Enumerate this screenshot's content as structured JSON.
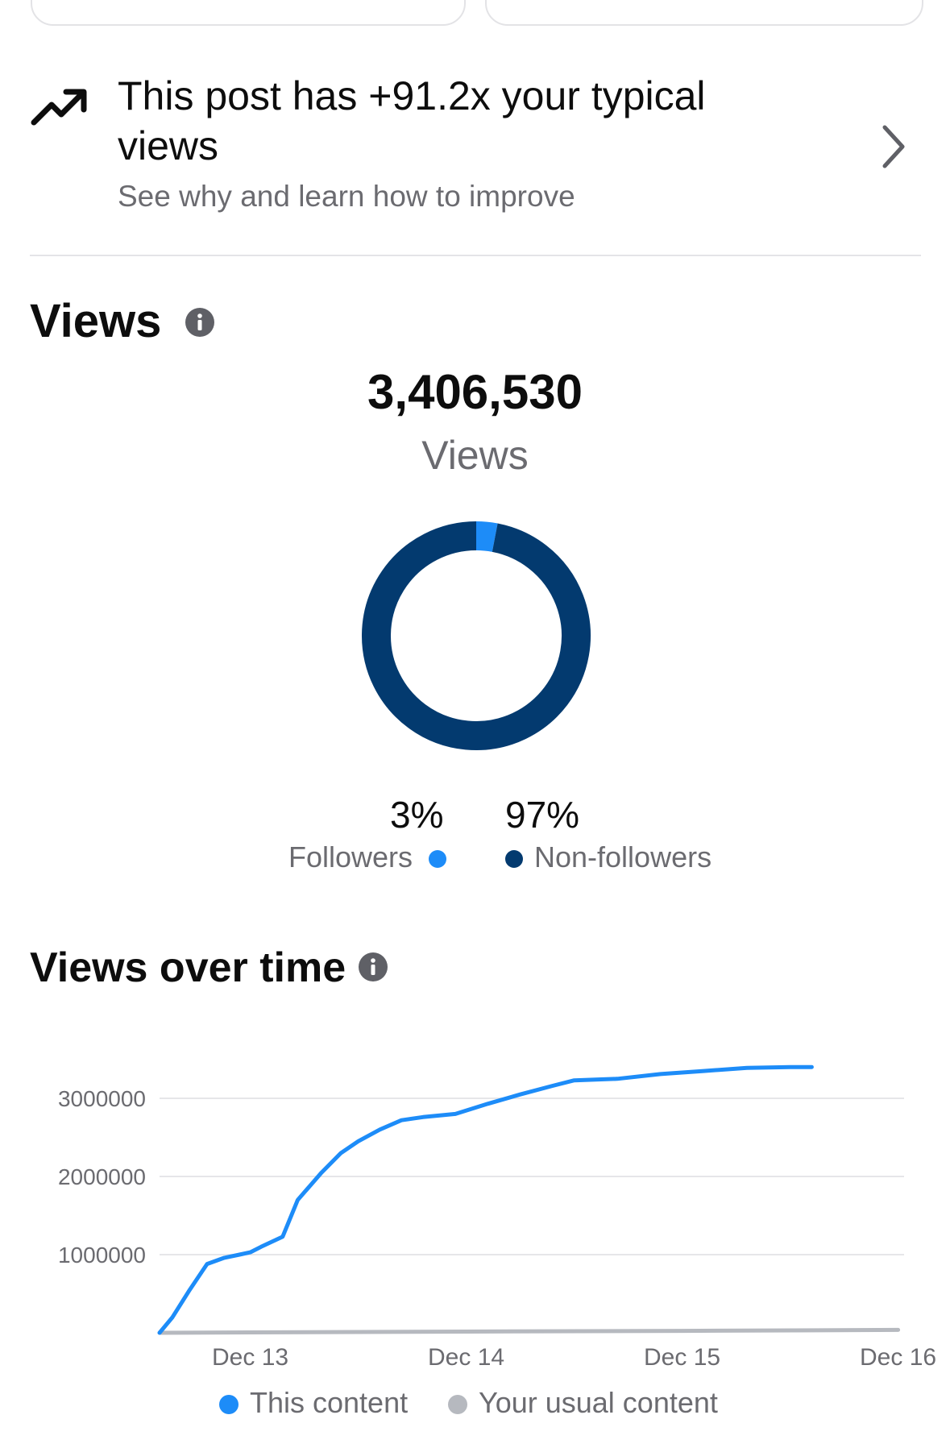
{
  "insight": {
    "title": "This post has +91.2x your typical views",
    "subtitle": "See why and learn how to improve",
    "icon": "trending-up-icon"
  },
  "views_section": {
    "title": "Views",
    "total": "3,406,530",
    "total_label": "Views",
    "followers_pct": "3%",
    "followers_label": "Followers",
    "nonfollowers_pct": "97%",
    "nonfollowers_label": "Non-followers"
  },
  "views_over_time": {
    "title": "Views over time",
    "legend_this": "This content",
    "legend_usual": "Your usual content"
  },
  "colors": {
    "followers": "#1d8cf8",
    "nonfollowers": "#033a6f",
    "this_content": "#1d8cf8",
    "usual_content": "#b6b9bf",
    "gridline": "#e6e6e9",
    "axis_text": "#6b6b70"
  },
  "chart_data": [
    {
      "type": "pie",
      "categories": [
        "Followers",
        "Non-followers"
      ],
      "values": [
        3,
        97
      ],
      "colors": [
        "#1d8cf8",
        "#033a6f"
      ],
      "donut": true
    },
    {
      "type": "line",
      "title": "Views over time",
      "x_tick_labels": [
        "Dec 13",
        "Dec 14",
        "Dec 15",
        "Dec 16"
      ],
      "y_tick_labels": [
        "1000000",
        "2000000",
        "3000000"
      ],
      "x_unit": "days (Dec 13 = 13)",
      "ylim": [
        0,
        3400000
      ],
      "xlim": [
        12.58,
        16.0
      ],
      "grid": true,
      "legend_placement": "bottom",
      "series": [
        {
          "name": "This content",
          "color": "#1d8cf8",
          "x": [
            12.58,
            12.64,
            12.72,
            12.8,
            12.88,
            12.95,
            13.0,
            13.05,
            13.15,
            13.22,
            13.33,
            13.42,
            13.5,
            13.6,
            13.7,
            13.8,
            13.95,
            14.1,
            14.25,
            14.4,
            14.5,
            14.7,
            14.9,
            15.1,
            15.3,
            15.5,
            15.6
          ],
          "values": [
            0,
            200000,
            550000,
            880000,
            960000,
            1000000,
            1030000,
            1100000,
            1230000,
            1700000,
            2050000,
            2300000,
            2450000,
            2600000,
            2720000,
            2760000,
            2800000,
            2930000,
            3050000,
            3160000,
            3230000,
            3250000,
            3310000,
            3350000,
            3390000,
            3400000,
            3400000
          ]
        },
        {
          "name": "Your usual content",
          "color": "#b6b9bf",
          "x": [
            12.58,
            13.0,
            14.0,
            15.0,
            16.0
          ],
          "values": [
            0,
            5000,
            15000,
            25000,
            37000
          ]
        }
      ]
    }
  ]
}
